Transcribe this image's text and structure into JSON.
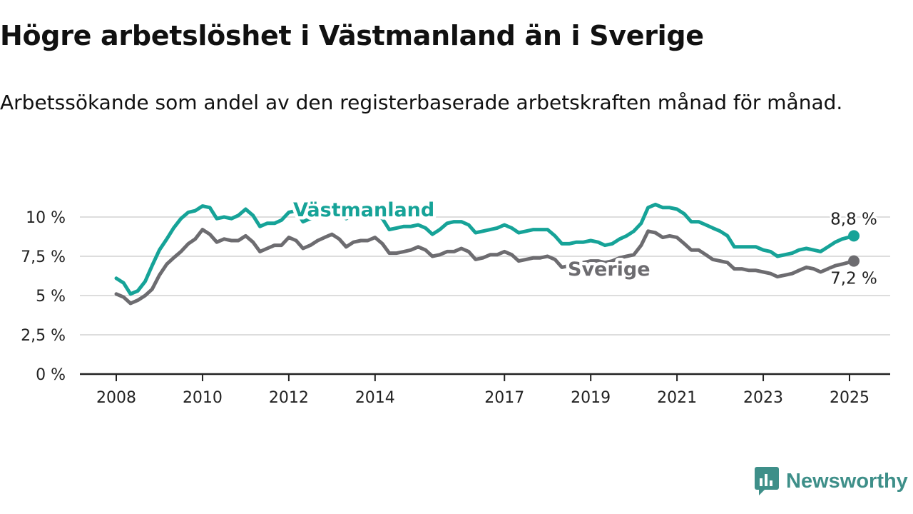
{
  "header": {
    "title": "Högre arbetslöshet i Västmanland än i Sverige",
    "subtitle": "Arbetssökande som andel av den registerbaserade arbetskraften månad för månad."
  },
  "brand": {
    "name": "Newsworthy",
    "logo_icon": "newsworthy-logo-icon"
  },
  "colors": {
    "vastmanland": "#16a398",
    "sverige": "#6d6c70",
    "grid": "#dddddd",
    "axis": "#222222"
  },
  "chart_data": {
    "type": "line",
    "title": "Högre arbetslöshet i Västmanland än i Sverige",
    "xlabel": "",
    "ylabel": "",
    "xlim": [
      2008,
      2025.9
    ],
    "ylim": [
      0,
      10
    ],
    "y_ticks": [
      0,
      2.5,
      5,
      7.5,
      10
    ],
    "y_tick_labels": [
      "0 %",
      "2,5 %",
      "5 %",
      "7,5 %",
      "10 %"
    ],
    "x_ticks": [
      2008,
      2010,
      2012,
      2014,
      2017,
      2019,
      2021,
      2023,
      2025
    ],
    "x_tick_labels": [
      "2008",
      "2010",
      "2012",
      "2014",
      "2017",
      "2019",
      "2021",
      "2023",
      "2025"
    ],
    "grid": "horizontal",
    "legend": "inline labels",
    "series": [
      {
        "name": "Västmanland",
        "color": "#16a398",
        "end_label": "8,8 %",
        "points": [
          [
            2008.0,
            6.1
          ],
          [
            2008.17,
            5.8
          ],
          [
            2008.33,
            5.1
          ],
          [
            2008.5,
            5.3
          ],
          [
            2008.67,
            5.9
          ],
          [
            2008.83,
            6.9
          ],
          [
            2009.0,
            7.9
          ],
          [
            2009.17,
            8.6
          ],
          [
            2009.33,
            9.3
          ],
          [
            2009.5,
            9.9
          ],
          [
            2009.67,
            10.3
          ],
          [
            2009.83,
            10.4
          ],
          [
            2010.0,
            10.7
          ],
          [
            2010.17,
            10.6
          ],
          [
            2010.33,
            9.9
          ],
          [
            2010.5,
            10.0
          ],
          [
            2010.67,
            9.9
          ],
          [
            2010.83,
            10.1
          ],
          [
            2011.0,
            10.5
          ],
          [
            2011.17,
            10.1
          ],
          [
            2011.33,
            9.4
          ],
          [
            2011.5,
            9.6
          ],
          [
            2011.67,
            9.6
          ],
          [
            2011.83,
            9.8
          ],
          [
            2012.0,
            10.3
          ],
          [
            2012.17,
            10.4
          ],
          [
            2012.33,
            9.7
          ],
          [
            2012.5,
            9.9
          ],
          [
            2012.67,
            10.1
          ],
          [
            2012.83,
            10.3
          ],
          [
            2013.0,
            10.4
          ],
          [
            2013.17,
            10.2
          ],
          [
            2013.33,
            9.9
          ],
          [
            2013.5,
            10.1
          ],
          [
            2013.67,
            10.3
          ],
          [
            2013.83,
            10.3
          ],
          [
            2014.0,
            10.3
          ],
          [
            2014.17,
            9.9
          ],
          [
            2014.33,
            9.2
          ],
          [
            2014.5,
            9.3
          ],
          [
            2014.67,
            9.4
          ],
          [
            2014.83,
            9.4
          ],
          [
            2015.0,
            9.5
          ],
          [
            2015.17,
            9.3
          ],
          [
            2015.33,
            8.9
          ],
          [
            2015.5,
            9.2
          ],
          [
            2015.67,
            9.6
          ],
          [
            2015.83,
            9.7
          ],
          [
            2016.0,
            9.7
          ],
          [
            2016.17,
            9.5
          ],
          [
            2016.33,
            9.0
          ],
          [
            2016.5,
            9.1
          ],
          [
            2016.67,
            9.2
          ],
          [
            2016.83,
            9.3
          ],
          [
            2017.0,
            9.5
          ],
          [
            2017.17,
            9.3
          ],
          [
            2017.33,
            9.0
          ],
          [
            2017.5,
            9.1
          ],
          [
            2017.67,
            9.2
          ],
          [
            2017.83,
            9.2
          ],
          [
            2018.0,
            9.2
          ],
          [
            2018.17,
            8.8
          ],
          [
            2018.33,
            8.3
          ],
          [
            2018.5,
            8.3
          ],
          [
            2018.67,
            8.4
          ],
          [
            2018.83,
            8.4
          ],
          [
            2019.0,
            8.5
          ],
          [
            2019.17,
            8.4
          ],
          [
            2019.33,
            8.2
          ],
          [
            2019.5,
            8.3
          ],
          [
            2019.67,
            8.6
          ],
          [
            2019.83,
            8.8
          ],
          [
            2020.0,
            9.1
          ],
          [
            2020.17,
            9.6
          ],
          [
            2020.33,
            10.6
          ],
          [
            2020.5,
            10.8
          ],
          [
            2020.67,
            10.6
          ],
          [
            2020.83,
            10.6
          ],
          [
            2021.0,
            10.5
          ],
          [
            2021.17,
            10.2
          ],
          [
            2021.33,
            9.7
          ],
          [
            2021.5,
            9.7
          ],
          [
            2021.67,
            9.5
          ],
          [
            2021.83,
            9.3
          ],
          [
            2022.0,
            9.1
          ],
          [
            2022.17,
            8.8
          ],
          [
            2022.33,
            8.1
          ],
          [
            2022.5,
            8.1
          ],
          [
            2022.67,
            8.1
          ],
          [
            2022.83,
            8.1
          ],
          [
            2023.0,
            7.9
          ],
          [
            2023.17,
            7.8
          ],
          [
            2023.33,
            7.5
          ],
          [
            2023.5,
            7.6
          ],
          [
            2023.67,
            7.7
          ],
          [
            2023.83,
            7.9
          ],
          [
            2024.0,
            8.0
          ],
          [
            2024.17,
            7.9
          ],
          [
            2024.33,
            7.8
          ],
          [
            2024.5,
            8.1
          ],
          [
            2024.67,
            8.4
          ],
          [
            2024.83,
            8.6
          ],
          [
            2025.1,
            8.8
          ]
        ]
      },
      {
        "name": "Sverige",
        "color": "#6d6c70",
        "end_label": "7,2 %",
        "points": [
          [
            2008.0,
            5.1
          ],
          [
            2008.17,
            4.9
          ],
          [
            2008.33,
            4.5
          ],
          [
            2008.5,
            4.7
          ],
          [
            2008.67,
            5.0
          ],
          [
            2008.83,
            5.4
          ],
          [
            2009.0,
            6.3
          ],
          [
            2009.17,
            7.0
          ],
          [
            2009.33,
            7.4
          ],
          [
            2009.5,
            7.8
          ],
          [
            2009.67,
            8.3
          ],
          [
            2009.83,
            8.6
          ],
          [
            2010.0,
            9.2
          ],
          [
            2010.17,
            8.9
          ],
          [
            2010.33,
            8.4
          ],
          [
            2010.5,
            8.6
          ],
          [
            2010.67,
            8.5
          ],
          [
            2010.83,
            8.5
          ],
          [
            2011.0,
            8.8
          ],
          [
            2011.17,
            8.4
          ],
          [
            2011.33,
            7.8
          ],
          [
            2011.5,
            8.0
          ],
          [
            2011.67,
            8.2
          ],
          [
            2011.83,
            8.2
          ],
          [
            2012.0,
            8.7
          ],
          [
            2012.17,
            8.5
          ],
          [
            2012.33,
            8.0
          ],
          [
            2012.5,
            8.2
          ],
          [
            2012.67,
            8.5
          ],
          [
            2012.83,
            8.7
          ],
          [
            2013.0,
            8.9
          ],
          [
            2013.17,
            8.6
          ],
          [
            2013.33,
            8.1
          ],
          [
            2013.5,
            8.4
          ],
          [
            2013.67,
            8.5
          ],
          [
            2013.83,
            8.5
          ],
          [
            2014.0,
            8.7
          ],
          [
            2014.17,
            8.3
          ],
          [
            2014.33,
            7.7
          ],
          [
            2014.5,
            7.7
          ],
          [
            2014.67,
            7.8
          ],
          [
            2014.83,
            7.9
          ],
          [
            2015.0,
            8.1
          ],
          [
            2015.17,
            7.9
          ],
          [
            2015.33,
            7.5
          ],
          [
            2015.5,
            7.6
          ],
          [
            2015.67,
            7.8
          ],
          [
            2015.83,
            7.8
          ],
          [
            2016.0,
            8.0
          ],
          [
            2016.17,
            7.8
          ],
          [
            2016.33,
            7.3
          ],
          [
            2016.5,
            7.4
          ],
          [
            2016.67,
            7.6
          ],
          [
            2016.83,
            7.6
          ],
          [
            2017.0,
            7.8
          ],
          [
            2017.17,
            7.6
          ],
          [
            2017.33,
            7.2
          ],
          [
            2017.5,
            7.3
          ],
          [
            2017.67,
            7.4
          ],
          [
            2017.83,
            7.4
          ],
          [
            2018.0,
            7.5
          ],
          [
            2018.17,
            7.3
          ],
          [
            2018.33,
            6.8
          ],
          [
            2018.5,
            6.9
          ],
          [
            2018.67,
            7.0
          ],
          [
            2018.83,
            7.1
          ],
          [
            2019.0,
            7.2
          ],
          [
            2019.17,
            7.2
          ],
          [
            2019.33,
            7.1
          ],
          [
            2019.5,
            7.2
          ],
          [
            2019.67,
            7.4
          ],
          [
            2019.83,
            7.5
          ],
          [
            2020.0,
            7.6
          ],
          [
            2020.17,
            8.2
          ],
          [
            2020.33,
            9.1
          ],
          [
            2020.5,
            9.0
          ],
          [
            2020.67,
            8.7
          ],
          [
            2020.83,
            8.8
          ],
          [
            2021.0,
            8.7
          ],
          [
            2021.17,
            8.3
          ],
          [
            2021.33,
            7.9
          ],
          [
            2021.5,
            7.9
          ],
          [
            2021.67,
            7.6
          ],
          [
            2021.83,
            7.3
          ],
          [
            2022.0,
            7.2
          ],
          [
            2022.17,
            7.1
          ],
          [
            2022.33,
            6.7
          ],
          [
            2022.5,
            6.7
          ],
          [
            2022.67,
            6.6
          ],
          [
            2022.83,
            6.6
          ],
          [
            2023.0,
            6.5
          ],
          [
            2023.17,
            6.4
          ],
          [
            2023.33,
            6.2
          ],
          [
            2023.5,
            6.3
          ],
          [
            2023.67,
            6.4
          ],
          [
            2023.83,
            6.6
          ],
          [
            2024.0,
            6.8
          ],
          [
            2024.17,
            6.7
          ],
          [
            2024.33,
            6.5
          ],
          [
            2024.5,
            6.7
          ],
          [
            2024.67,
            6.9
          ],
          [
            2024.83,
            7.0
          ],
          [
            2025.1,
            7.2
          ]
        ]
      }
    ]
  }
}
